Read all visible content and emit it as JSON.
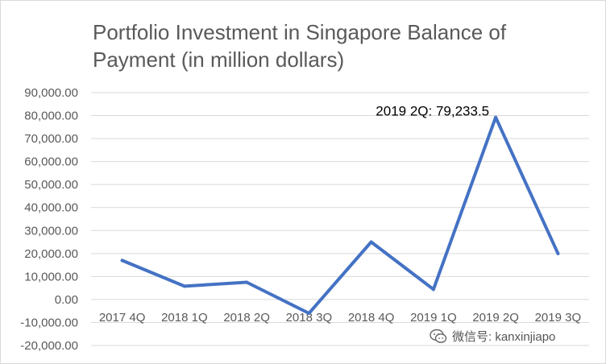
{
  "chart_data": {
    "type": "line",
    "title": "Portfolio Investment in Singapore Balance of Payment (in million dollars)",
    "categories": [
      "2017 4Q",
      "2018 1Q",
      "2018 2Q",
      "2018 3Q",
      "2018 4Q",
      "2019 1Q",
      "2019 2Q",
      "2019 3Q"
    ],
    "series": [
      {
        "values": [
          17000,
          5800,
          7500,
          -6000,
          25000,
          4400,
          79233.5,
          20000
        ]
      }
    ],
    "ylim": [
      -20000,
      90000
    ],
    "yticks": [
      90000,
      80000,
      70000,
      60000,
      50000,
      40000,
      30000,
      20000,
      10000,
      0,
      -10000,
      -20000
    ],
    "ytick_labels": [
      "90,000.00",
      "80,000.00",
      "70,000.00",
      "60,000.00",
      "50,000.00",
      "40,000.00",
      "30,000.00",
      "20,000.00",
      "10,000.00",
      "0.00",
      "-10,000.00",
      "-20,000.00"
    ],
    "annotation": {
      "text": "2019 2Q: 79,233.5",
      "category": "2019 2Q",
      "value": 79233.5
    },
    "grid": true,
    "line_color": "#4472c4",
    "grid_color": "#d9d9d9",
    "text_color": "#595959"
  },
  "watermark": {
    "text": "微信号: kanxinjiapo",
    "icon": "wechat-icon"
  }
}
